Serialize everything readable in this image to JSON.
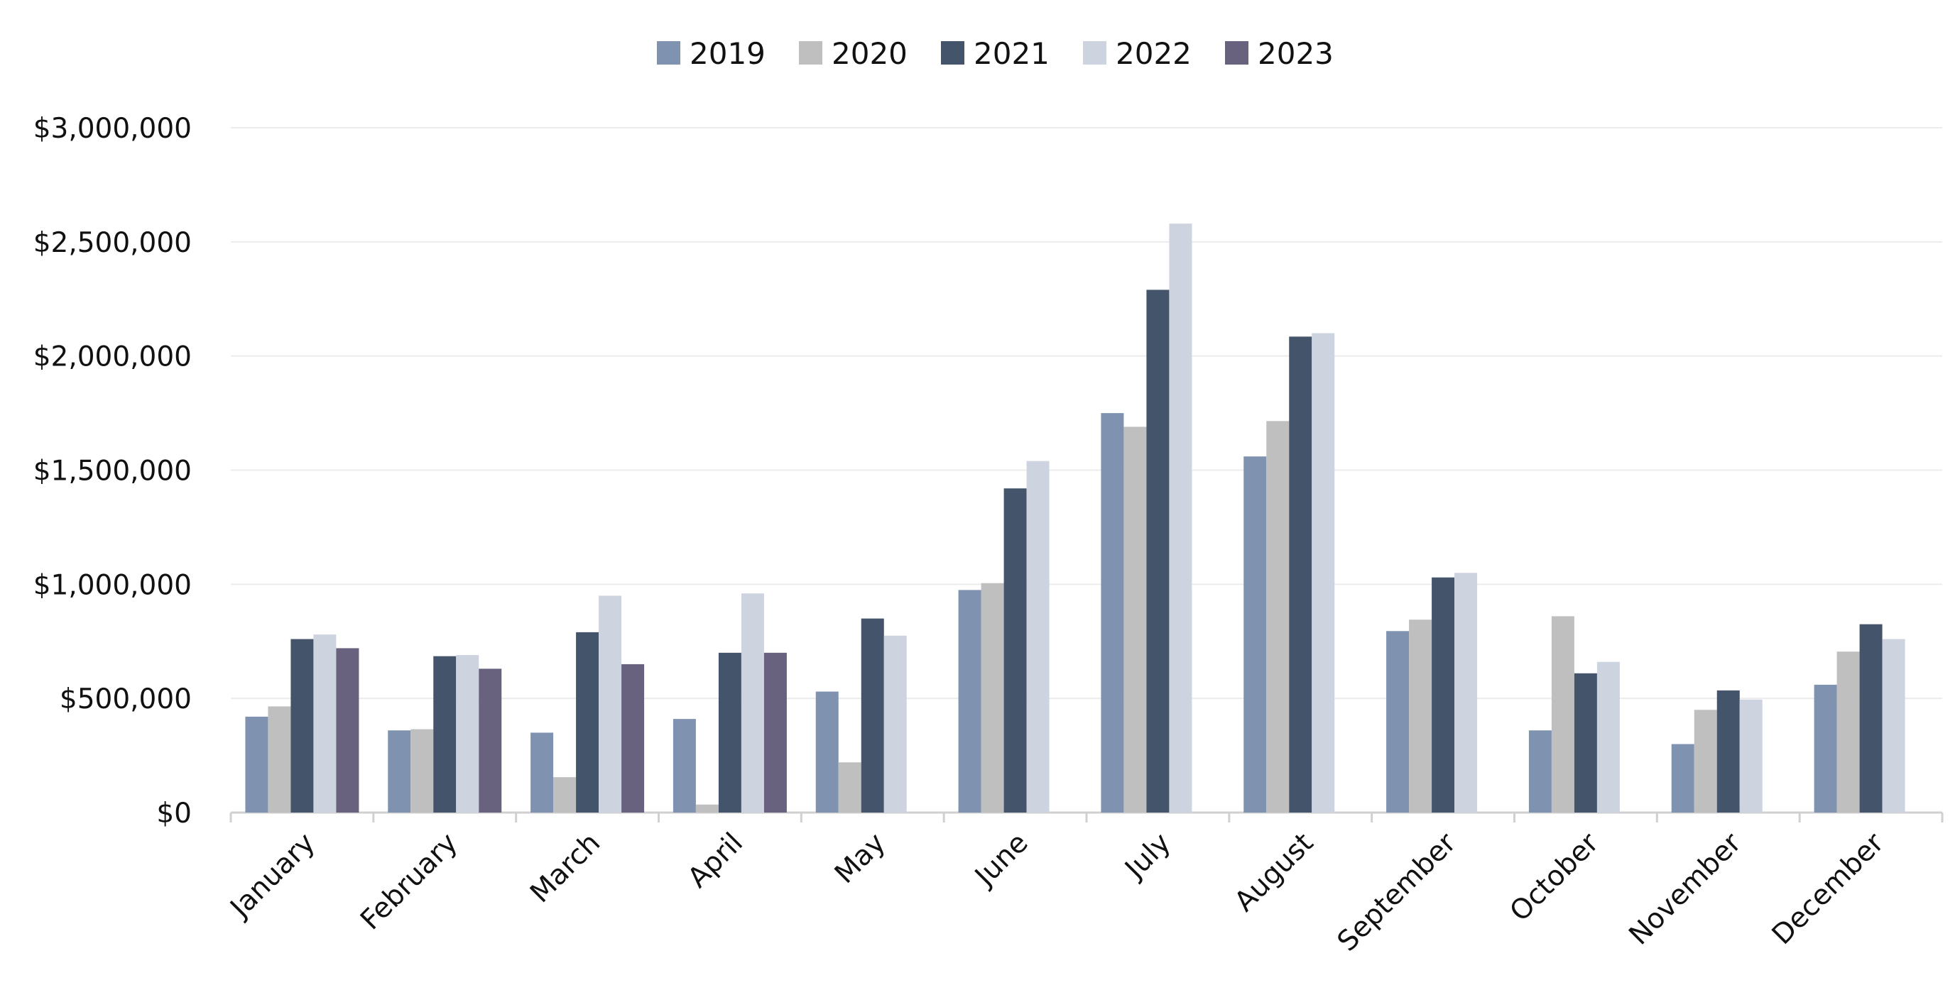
{
  "chart_data": {
    "type": "bar",
    "title": "",
    "xlabel": "",
    "ylabel": "",
    "ylim": [
      0,
      3000000
    ],
    "y_ticks": [
      0,
      500000,
      1000000,
      1500000,
      2000000,
      2500000,
      3000000
    ],
    "y_tick_labels": [
      "$0",
      "$500,000",
      "$1,000,000",
      "$1,500,000",
      "$2,000,000",
      "$2,500,000",
      "$3,000,000"
    ],
    "grid": true,
    "legend_position": "top-center",
    "categories": [
      "January",
      "February",
      "March",
      "April",
      "May",
      "June",
      "July",
      "August",
      "September",
      "October",
      "November",
      "December"
    ],
    "series": [
      {
        "name": "2019",
        "color": "#7f93b1",
        "values": [
          420000,
          360000,
          350000,
          410000,
          530000,
          975000,
          1750000,
          1560000,
          795000,
          360000,
          300000,
          560000
        ]
      },
      {
        "name": "2020",
        "color": "#bfbfbf",
        "values": [
          465000,
          365000,
          155000,
          35000,
          220000,
          1005000,
          1690000,
          1715000,
          845000,
          860000,
          450000,
          705000
        ]
      },
      {
        "name": "2021",
        "color": "#44546a",
        "values": [
          760000,
          685000,
          790000,
          700000,
          850000,
          1420000,
          2290000,
          2085000,
          1030000,
          610000,
          535000,
          825000
        ]
      },
      {
        "name": "2022",
        "color": "#cdd4e0",
        "values": [
          780000,
          690000,
          950000,
          960000,
          775000,
          1540000,
          2580000,
          2100000,
          1050000,
          660000,
          495000,
          760000
        ]
      },
      {
        "name": "2023",
        "color": "#68627f",
        "values": [
          720000,
          630000,
          650000,
          700000,
          null,
          null,
          null,
          null,
          null,
          null,
          null,
          null
        ]
      }
    ]
  }
}
